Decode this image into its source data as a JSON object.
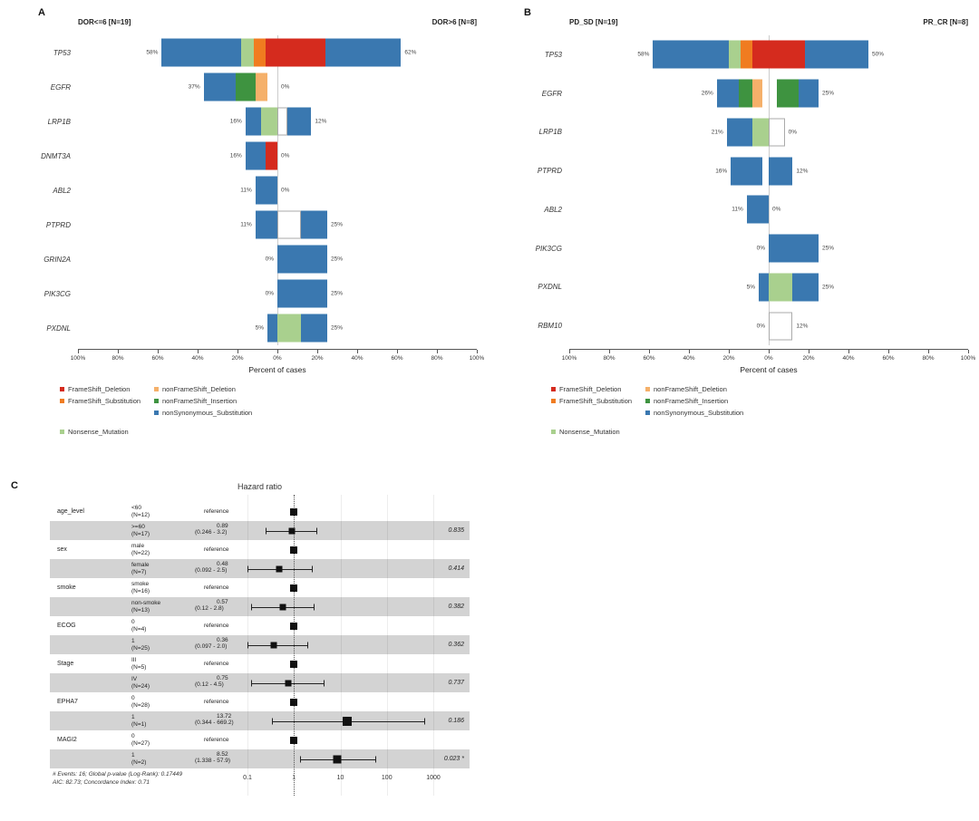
{
  "mutation_colors": {
    "FrameShift_Deletion": "#d52b1e",
    "FrameShift_Substitution": "#f07c20",
    "Nonsense_Mutation": "#a9d08e",
    "nonFrameShift_Deletion": "#f5b06a",
    "nonFrameShift_Insertion": "#3e9340",
    "nonSynonymous_Substitution": "#3a78b0"
  },
  "shade_color": "#d3d3d3",
  "marker_color": "#111111",
  "legend_columns": [
    [
      {
        "key": "FrameShift_Deletion",
        "label": "FrameShift_Deletion"
      },
      {
        "key": "FrameShift_Substitution",
        "label": "FrameShift_Substitution"
      },
      null,
      {
        "key": "Nonsense_Mutation",
        "label": "Nonsense_Mutation"
      }
    ],
    [
      {
        "key": "nonFrameShift_Deletion",
        "label": "nonFrameShift_Deletion"
      },
      {
        "key": "nonFrameShift_Insertion",
        "label": "nonFrameShift_Insertion"
      },
      {
        "key": "nonSynonymous_Substitution",
        "label": "nonSynonymous_Substitution"
      }
    ]
  ],
  "chart_data": [
    {
      "type": "bar",
      "subtype": "tornado-stacked",
      "panel_label": "A",
      "left_group": "DOR<=6 [N=19]",
      "right_group": "DOR>6 [N=8]",
      "xlabel": "Percent of cases",
      "axis_ticks": [
        "100%",
        "80%",
        "60%",
        "40%",
        "20%",
        "0%",
        "20%",
        "40%",
        "60%",
        "80%",
        "100%"
      ],
      "genes": [
        {
          "name": "TP53",
          "left_pct": "58%",
          "right_pct": "62%",
          "left": [
            [
              "nonSynonymous_Substitution",
              40
            ],
            [
              "Nonsense_Mutation",
              6
            ],
            [
              "FrameShift_Substitution",
              6
            ],
            [
              "FrameShift_Deletion",
              6
            ]
          ],
          "right": [
            [
              "FrameShift_Deletion",
              24
            ],
            [
              "nonSynonymous_Substitution",
              38
            ]
          ]
        },
        {
          "name": "EGFR",
          "left_pct": "37%",
          "right_pct": "0%",
          "left": [
            [
              "nonSynonymous_Substitution",
              16
            ],
            [
              "nonFrameShift_Insertion",
              10
            ],
            [
              "nonFrameShift_Deletion",
              6
            ],
            [
              "gap",
              5
            ]
          ],
          "right": []
        },
        {
          "name": "LRP1B",
          "left_pct": "16%",
          "right_pct": "12%",
          "left": [
            [
              "nonSynonymous_Substitution",
              8
            ],
            [
              "Nonsense_Mutation",
              8
            ]
          ],
          "right": [
            [
              "gap_outlined",
              5
            ],
            [
              "nonSynonymous_Substitution",
              12
            ]
          ]
        },
        {
          "name": "DNMT3A",
          "left_pct": "16%",
          "right_pct": "0%",
          "left": [
            [
              "nonSynonymous_Substitution",
              10
            ],
            [
              "FrameShift_Deletion",
              6
            ]
          ],
          "right": []
        },
        {
          "name": "ABL2",
          "left_pct": "11%",
          "right_pct": "0%",
          "left": [
            [
              "nonSynonymous_Substitution",
              11
            ]
          ],
          "right": []
        },
        {
          "name": "PTPRD",
          "left_pct": "11%",
          "right_pct": "25%",
          "left": [
            [
              "nonSynonymous_Substitution",
              11
            ]
          ],
          "right": [
            [
              "gap_outlined",
              12
            ],
            [
              "nonSynonymous_Substitution",
              13
            ]
          ]
        },
        {
          "name": "GRIN2A",
          "left_pct": "0%",
          "right_pct": "25%",
          "left": [],
          "right": [
            [
              "nonSynonymous_Substitution",
              25
            ]
          ]
        },
        {
          "name": "PIK3CG",
          "left_pct": "0%",
          "right_pct": "25%",
          "left": [],
          "right": [
            [
              "nonSynonymous_Substitution",
              25
            ]
          ]
        },
        {
          "name": "PXDNL",
          "left_pct": "5%",
          "right_pct": "25%",
          "left": [
            [
              "nonSynonymous_Substitution",
              5
            ]
          ],
          "right": [
            [
              "Nonsense_Mutation",
              12
            ],
            [
              "nonSynonymous_Substitution",
              13
            ]
          ]
        }
      ]
    },
    {
      "type": "bar",
      "subtype": "tornado-stacked",
      "panel_label": "B",
      "left_group": "PD_SD [N=19]",
      "right_group": "PR_CR [N=8]",
      "xlabel": "Percent of cases",
      "axis_ticks": [
        "100%",
        "80%",
        "60%",
        "40%",
        "20%",
        "0%",
        "20%",
        "40%",
        "60%",
        "80%",
        "100%"
      ],
      "genes": [
        {
          "name": "TP53",
          "left_pct": "58%",
          "right_pct": "50%",
          "left": [
            [
              "nonSynonymous_Substitution",
              38
            ],
            [
              "Nonsense_Mutation",
              6
            ],
            [
              "FrameShift_Substitution",
              6
            ],
            [
              "FrameShift_Deletion",
              8
            ]
          ],
          "right": [
            [
              "FrameShift_Deletion",
              18
            ],
            [
              "nonSynonymous_Substitution",
              32
            ]
          ]
        },
        {
          "name": "EGFR",
          "left_pct": "26%",
          "right_pct": "25%",
          "left": [
            [
              "nonSynonymous_Substitution",
              11
            ],
            [
              "nonFrameShift_Insertion",
              7
            ],
            [
              "nonFrameShift_Deletion",
              5
            ],
            [
              "gap",
              3
            ]
          ],
          "right": [
            [
              "gap",
              4
            ],
            [
              "nonFrameShift_Insertion",
              11
            ],
            [
              "nonSynonymous_Substitution",
              10
            ]
          ]
        },
        {
          "name": "LRP1B",
          "left_pct": "21%",
          "right_pct": "0%",
          "left": [
            [
              "nonSynonymous_Substitution",
              13
            ],
            [
              "Nonsense_Mutation",
              8
            ]
          ],
          "right": [
            [
              "gap_outlined",
              8
            ]
          ]
        },
        {
          "name": "PTPRD",
          "left_pct": "16%",
          "right_pct": "12%",
          "left": [
            [
              "nonSynonymous_Substitution",
              16
            ],
            [
              "gap",
              3
            ]
          ],
          "right": [
            [
              "nonSynonymous_Substitution",
              12
            ]
          ]
        },
        {
          "name": "ABL2",
          "left_pct": "11%",
          "right_pct": "0%",
          "left": [
            [
              "nonSynonymous_Substitution",
              11
            ]
          ],
          "right": []
        },
        {
          "name": "PIK3CG",
          "left_pct": "0%",
          "right_pct": "25%",
          "left": [],
          "right": [
            [
              "nonSynonymous_Substitution",
              25
            ]
          ]
        },
        {
          "name": "PXDNL",
          "left_pct": "5%",
          "right_pct": "25%",
          "left": [
            [
              "nonSynonymous_Substitution",
              5
            ]
          ],
          "right": [
            [
              "Nonsense_Mutation",
              12
            ],
            [
              "nonSynonymous_Substitution",
              13
            ]
          ]
        },
        {
          "name": "RBM10",
          "left_pct": "0%",
          "right_pct": "12%",
          "left": [],
          "right": [
            [
              "gap_outlined",
              12
            ]
          ]
        }
      ]
    },
    {
      "type": "forest",
      "panel_label": "C",
      "title": "Hazard ratio",
      "reference_label": "reference",
      "xscale": "log10",
      "xlim": [
        0.1,
        1000
      ],
      "xticks": [
        0.1,
        1,
        10,
        100,
        1000
      ],
      "rows": [
        {
          "variable": "age_level",
          "level": "<60",
          "n": "(N=12)",
          "reference": true,
          "hr": 1,
          "shaded": false
        },
        {
          "variable": "",
          "level": ">=60",
          "n": "(N=17)",
          "est": "0.89",
          "ci_text": "(0.246 - 3.2)",
          "hr": 0.89,
          "lo": 0.246,
          "hi": 3.2,
          "p": "0.835",
          "shaded": true
        },
        {
          "variable": "sex",
          "level": "male",
          "n": "(N=22)",
          "reference": true,
          "hr": 1,
          "shaded": false
        },
        {
          "variable": "",
          "level": "female",
          "n": "(N=7)",
          "est": "0.48",
          "ci_text": "(0.092 - 2.5)",
          "hr": 0.48,
          "lo": 0.092,
          "hi": 2.5,
          "p": "0.414",
          "shaded": true
        },
        {
          "variable": "smoke",
          "level": "smoke",
          "n": "(N=16)",
          "reference": true,
          "hr": 1,
          "shaded": false
        },
        {
          "variable": "",
          "level": "non-smoke",
          "n": "(N=13)",
          "est": "0.57",
          "ci_text": "(0.12 - 2.8)",
          "hr": 0.57,
          "lo": 0.12,
          "hi": 2.8,
          "p": "0.382",
          "shaded": true
        },
        {
          "variable": "ECOG",
          "level": "0",
          "n": "(N=4)",
          "reference": true,
          "hr": 1,
          "shaded": false
        },
        {
          "variable": "",
          "level": "1",
          "n": "(N=25)",
          "est": "0.36",
          "ci_text": "(0.097 - 2.0)",
          "hr": 0.36,
          "lo": 0.097,
          "hi": 2.0,
          "p": "0.362",
          "shaded": true
        },
        {
          "variable": "Stage",
          "level": "III",
          "n": "(N=5)",
          "reference": true,
          "hr": 1,
          "shaded": false
        },
        {
          "variable": "",
          "level": "IV",
          "n": "(N=24)",
          "est": "0.75",
          "ci_text": "(0.12 - 4.5)",
          "hr": 0.75,
          "lo": 0.12,
          "hi": 4.5,
          "p": "0.737",
          "shaded": true
        },
        {
          "variable": "EPHA7",
          "level": "0",
          "n": "(N=28)",
          "reference": true,
          "hr": 1,
          "shaded": false
        },
        {
          "variable": "",
          "level": "1",
          "n": "(N=1)",
          "est": "13.72",
          "ci_text": "(0.344 - 669.2)",
          "hr": 13.72,
          "lo": 0.344,
          "hi": 669.2,
          "p": "0.186",
          "shaded": true,
          "marker": 10
        },
        {
          "variable": "MAGI2",
          "level": "0",
          "n": "(N=27)",
          "reference": true,
          "hr": 1,
          "shaded": false
        },
        {
          "variable": "",
          "level": "1",
          "n": "(N=2)",
          "est": "8.52",
          "ci_text": "(1.338 - 57.9)",
          "hr": 8.52,
          "lo": 1.338,
          "hi": 57.9,
          "p": "0.023 *",
          "shaded": true,
          "marker": 9
        }
      ],
      "footnotes": [
        "# Events: 16; Global p-value (Log-Rank): 0.17449",
        "AIC: 82.73; Concordance Index: 0.71"
      ]
    }
  ]
}
